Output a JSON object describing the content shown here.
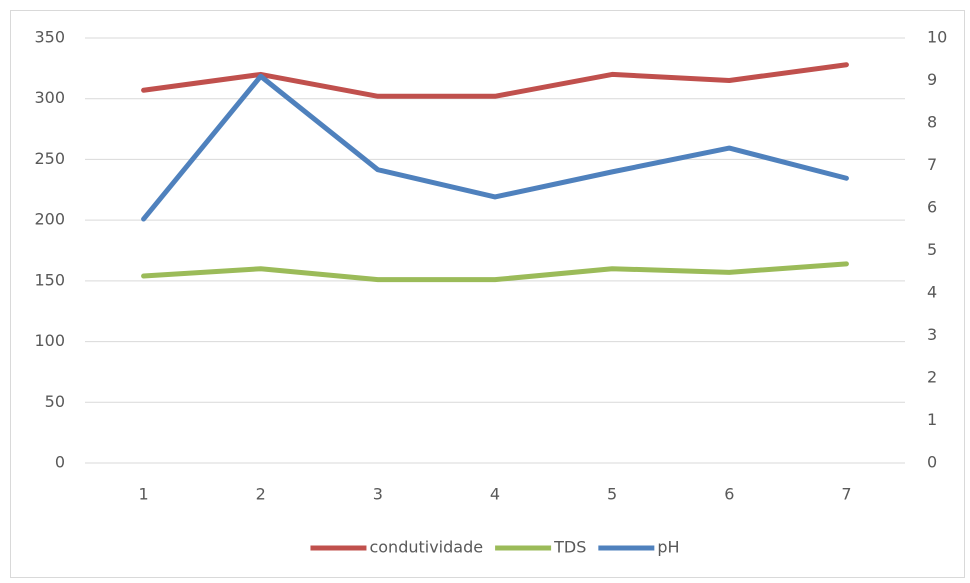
{
  "chart_data": {
    "type": "line",
    "categories": [
      "1",
      "2",
      "3",
      "4",
      "5",
      "6",
      "7"
    ],
    "series": [
      {
        "name": "condutividade",
        "color": "#c0504d",
        "values": [
          307,
          320,
          302,
          302,
          320,
          315,
          328
        ]
      },
      {
        "name": "TDS",
        "color": "#9bbb59",
        "values": [
          154,
          160,
          151,
          151,
          160,
          157,
          164
        ]
      },
      {
        "name": "pH",
        "color": "#4f81bd",
        "axis": "y2",
        "values": [
          5.74,
          9.1,
          6.9,
          6.26,
          6.85,
          7.41,
          6.7
        ]
      }
    ],
    "ylim": [
      0,
      350
    ],
    "yticks": [
      0,
      50,
      100,
      150,
      200,
      250,
      300,
      350
    ],
    "y2lim": [
      0,
      10
    ],
    "y2ticks": [
      0,
      1,
      2,
      3,
      4,
      5,
      6,
      7,
      8,
      9,
      10
    ],
    "grid": true,
    "legend": "bottom"
  }
}
